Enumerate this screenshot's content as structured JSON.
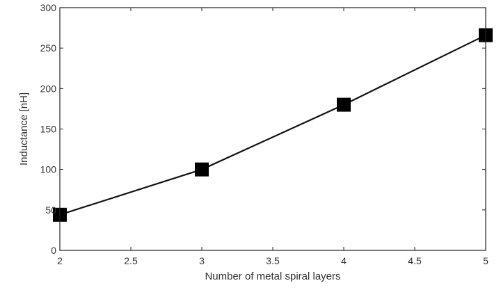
{
  "chart_data": {
    "type": "line",
    "title": "",
    "xlabel": "Number of metal spiral layers",
    "ylabel": "Inductance [nH]",
    "xlim": [
      2,
      5
    ],
    "ylim": [
      0,
      300
    ],
    "xticks": [
      "2",
      "2.5",
      "3",
      "3.5",
      "4",
      "4.5",
      "5"
    ],
    "yticks": [
      "0",
      "50",
      "100",
      "150",
      "200",
      "250",
      "300"
    ],
    "grid": false,
    "marker": "square",
    "series": [
      {
        "x": [
          2,
          3,
          4,
          5
        ],
        "y": [
          44,
          100,
          180,
          266
        ]
      }
    ]
  }
}
